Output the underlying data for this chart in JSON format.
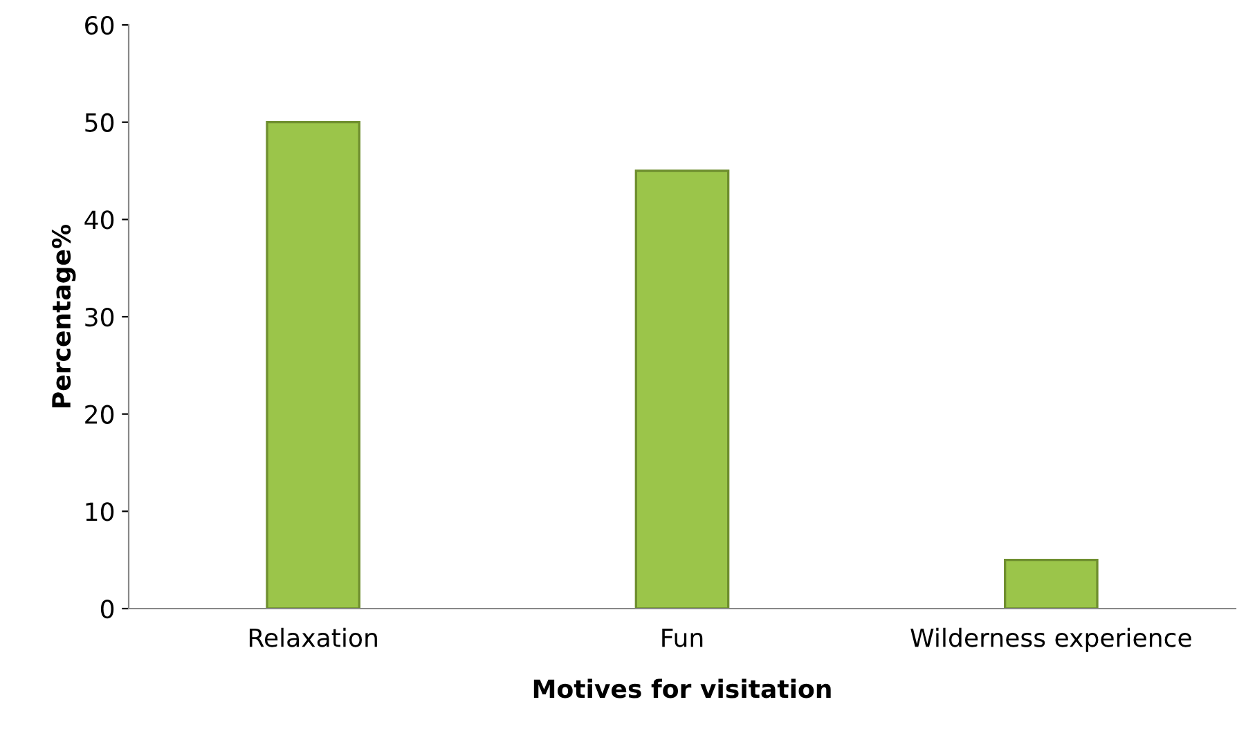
{
  "chart_data": {
    "type": "bar",
    "xlabel": "Motives for visitation",
    "ylabel": "Percentage%",
    "categories": [
      "Relaxation",
      "Fun",
      "Wilderness experience"
    ],
    "values": [
      50,
      45,
      5
    ],
    "color": "#9bc54a",
    "ylim": [
      0,
      60
    ],
    "yticks": [
      0,
      10,
      20,
      30,
      40,
      50,
      60
    ],
    "grid": false
  }
}
